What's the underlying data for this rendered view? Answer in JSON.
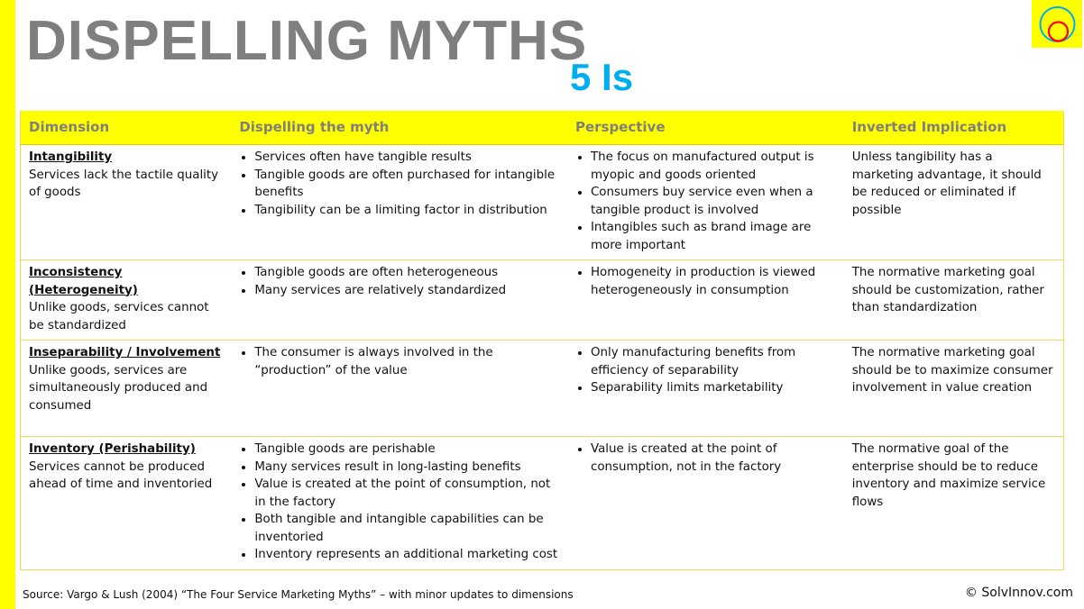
{
  "title": "DISPELLING MYTHS",
  "subtitle": "5 Is",
  "logo": {
    "icon": "nested-circles-logo",
    "colors": {
      "background": "#ffff00",
      "outer": "#00aeef",
      "inner": "#ff0000"
    }
  },
  "table": {
    "headers": [
      "Dimension",
      "Dispelling the myth",
      "Perspective",
      "Inverted Implication"
    ],
    "rows": [
      {
        "dimension": "Intangibility",
        "description": "Services lack the tactile quality of goods",
        "dispelling": [
          "Services often have tangible results",
          "Tangible goods are often purchased for intangible benefits",
          "Tangibility can be a limiting factor in distribution"
        ],
        "perspective": [
          "The focus on manufactured output is myopic and goods oriented",
          "Consumers buy service even when a tangible product is involved",
          "Intangibles such as brand image are more important"
        ],
        "implication": "Unless tangibility has a marketing advantage, it should be reduced or eliminated if possible"
      },
      {
        "dimension": "Inconsistency (Heterogeneity)",
        "description": "Unlike goods, services cannot be standardized",
        "dispelling": [
          "Tangible goods are often heterogeneous",
          "Many services are relatively standardized"
        ],
        "perspective": [
          "Homogeneity in production is viewed heterogeneously in consumption"
        ],
        "implication": "The normative marketing goal should be customization, rather than standardization"
      },
      {
        "dimension": "Inseparability / Involvement",
        "description": "Unlike goods, services are simultaneously produced and consumed",
        "dispelling": [
          "The consumer is always involved in the “production” of the value"
        ],
        "perspective": [
          "Only manufacturing benefits from efficiency of separability",
          "Separability limits marketability"
        ],
        "implication": "The normative marketing goal should be to maximize consumer involvement in value creation"
      },
      {
        "dimension": "Inventory (Perishability)",
        "description": "Services cannot be produced ahead of time and inventoried",
        "dispelling": [
          "Tangible goods are perishable",
          "Many services result in long-lasting benefits",
          "Value is created at the point of consumption, not in the factory",
          "Both tangible and intangible capabilities can be inventoried",
          "Inventory represents an additional marketing cost"
        ],
        "perspective": [
          "Value is created at the point of consumption, not in the factory"
        ],
        "implication": "The normative goal of the enterprise should be to reduce inventory and maximize service flows"
      }
    ]
  },
  "footer": {
    "source": "Source: Vargo & Lush (2004) “The Four Service Marketing Myths” – with minor updates to dimensions",
    "copyright": "© SolvInnov.com"
  }
}
